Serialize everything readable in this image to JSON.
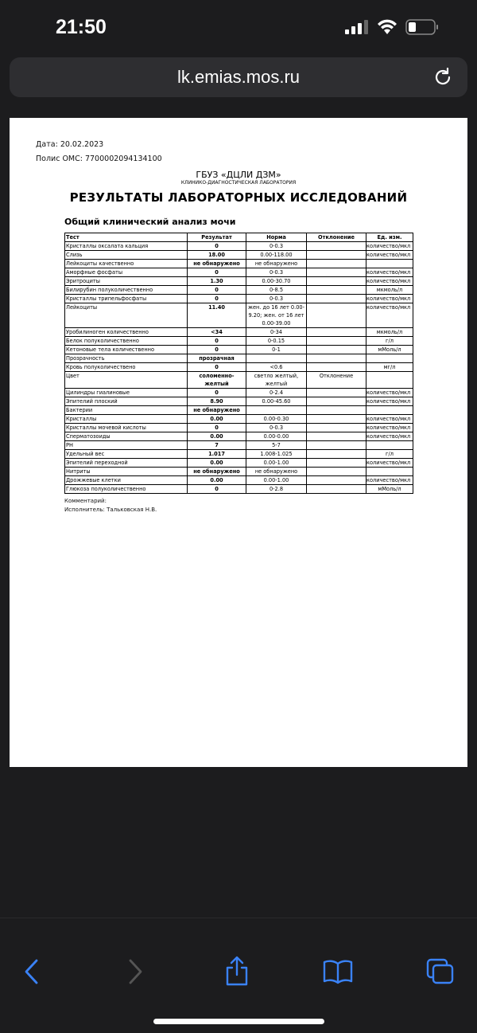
{
  "status": {
    "time": "21:50"
  },
  "browser": {
    "url": "lk.emias.mos.ru",
    "accent": "#3a82f7"
  },
  "doc": {
    "date": "Дата: 20.02.2023",
    "policy": "Полис ОМС: 7700002094134100",
    "org": "ГБУЗ «ДЦЛИ ДЗМ»",
    "lab": "КЛИНИКО-ДИАГНОСТИЧЕСКАЯ ЛАБОРАТОРИЯ",
    "title": "РЕЗУЛЬТАТЫ ЛАБОРАТОРНЫХ ИССЛЕДОВАНИЙ",
    "subtitle": "Общий клинический анализ мочи",
    "headers": [
      "Тест",
      "Результат",
      "Норма",
      "Отклонение",
      "Ед. изм."
    ],
    "rows": [
      [
        "Кристаллы оксалата кальция",
        "0",
        "0-0.3",
        "",
        "количество/мкл"
      ],
      [
        "Слизь",
        "18.00",
        "0.00-118.00",
        "",
        "количество/мкл"
      ],
      [
        "Лейкоциты качественно",
        "не обнаружено",
        "не обнаружено",
        "",
        ""
      ],
      [
        "Аморфные фосфаты",
        "0",
        "0-0.3",
        "",
        "количество/мкл"
      ],
      [
        "Эритроциты",
        "1.30",
        "0.00-30.70",
        "",
        "количество/мкл"
      ],
      [
        "Билирубин полуколичественно",
        "0",
        "0-8.5",
        "",
        "мкмоль/л"
      ],
      [
        "Кристаллы трипельфосфаты",
        "0",
        "0-0.3",
        "",
        "количество/мкл"
      ],
      [
        "Лейкоциты",
        "11.40",
        "жен. до 16 лет 0.00-9.20; жен. от 16 лет 0.00-39.00",
        "",
        "количество/мкл"
      ],
      [
        "Уробилиноген количественно",
        "<34",
        "0-34",
        "",
        "мкмоль/л"
      ],
      [
        "Белок полуколичественно",
        "0",
        "0-0.15",
        "",
        "г/л"
      ],
      [
        "Кетоновые тела количественно",
        "0",
        "0-1",
        "",
        "мМоль/л"
      ],
      [
        "Прозрачность",
        "прозрачная",
        "",
        "",
        ""
      ],
      [
        "Кровь полуколичествено",
        "0",
        "<0.6",
        "",
        "мг/л"
      ],
      [
        "Цвет",
        "соломенно-желтый",
        "светло желтый, желтый",
        "Отклонение",
        ""
      ],
      [
        "Цилиндры гиалиновые",
        "0",
        "0-2.4",
        "",
        "количество/мкл"
      ],
      [
        "Эпителий плоский",
        "8.90",
        "0.00-45.60",
        "",
        "количество/мкл"
      ],
      [
        "Бактерии",
        "не обнаружено",
        "",
        "",
        ""
      ],
      [
        "Кристаллы",
        "0.00",
        "0.00-0.30",
        "",
        "количество/мкл"
      ],
      [
        "Кристаллы мочевой кислоты",
        "0",
        "0-0.3",
        "",
        "количество/мкл"
      ],
      [
        "Сперматозоиды",
        "0.00",
        "0.00-0.00",
        "",
        "количество/мкл"
      ],
      [
        "PH",
        "7",
        "5-7",
        "",
        ""
      ],
      [
        "Удельный вес",
        "1.017",
        "1.008-1.025",
        "",
        "г/л"
      ],
      [
        "Эпителий переходной",
        "0.00",
        "0.00-1.00",
        "",
        "количество/мкл"
      ],
      [
        "Нитриты",
        "не обнаружено",
        "не обнаружено",
        "",
        ""
      ],
      [
        "Дрожжевые клетки",
        "0.00",
        "0.00-1.00",
        "",
        "количество/мкл"
      ],
      [
        "Глюкоза полуколичественно",
        "0",
        "0-2.8",
        "",
        "мМоль/л"
      ]
    ],
    "comment": "Комментарий:",
    "performer": "Исполнитель: Тальковская Н.В."
  }
}
